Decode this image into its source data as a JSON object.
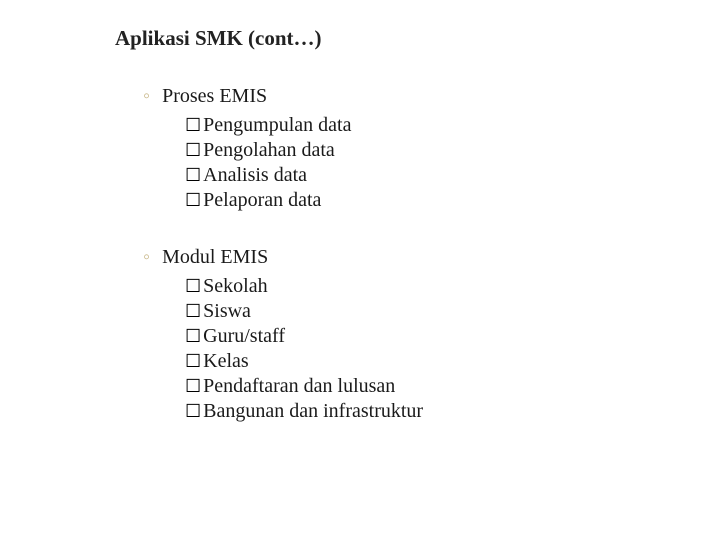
{
  "title": "Aplikasi SMK (cont…)",
  "colors": {
    "title": "#222222",
    "text": "#1a1a1a",
    "section_bullet": "#c9b88a",
    "box": "#000000",
    "background": "#ffffff"
  },
  "typography": {
    "title_pt": 21,
    "title_weight": "bold",
    "body_pt": 20,
    "font_family": "Georgia, Times New Roman, serif"
  },
  "bullet_char": "◦",
  "box_char": "☐",
  "sections": [
    {
      "label": "Proses EMIS",
      "items": [
        "Pengumpulan data",
        "Pengolahan data",
        "Analisis data",
        "Pelaporan data"
      ]
    },
    {
      "label": "Modul EMIS",
      "items": [
        "Sekolah",
        "Siswa",
        "Guru/staff",
        "Kelas",
        "Pendaftaran dan lulusan",
        "Bangunan dan infrastruktur"
      ]
    }
  ]
}
